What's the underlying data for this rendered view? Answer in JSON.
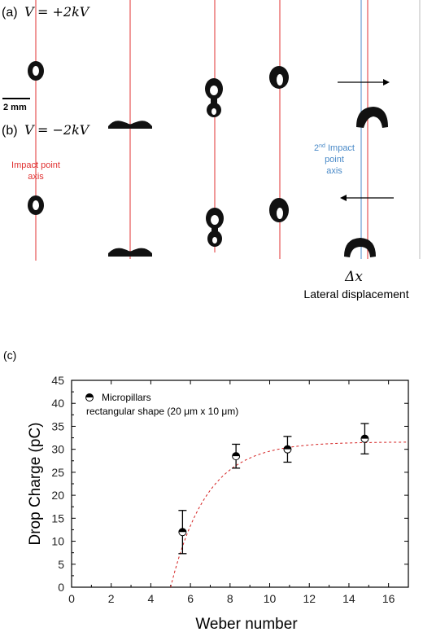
{
  "panel_a": {
    "label": "(a)",
    "voltage_prefix": "V",
    "voltage_value": "= +2kV"
  },
  "panel_b": {
    "label": "(b)",
    "voltage_prefix": "V",
    "voltage_value": "= −2kV"
  },
  "scale_bar_label": "2 mm",
  "impact_axis_label": [
    "Impact point",
    "axis"
  ],
  "second_impact_label": {
    "number": "2",
    "superscript": "nd",
    "line1_rest": " Impact",
    "line2": "point",
    "line3": "axis"
  },
  "delta_x_label": "Δx",
  "lateral_displacement_label": "Lateral displacement",
  "panel_c_label": "(c)",
  "colors": {
    "impact_axis": "#e03030",
    "second_axis": "#4a8ac8",
    "fit_curve": "#d42020",
    "drop": "#111111"
  },
  "chart_data": {
    "type": "scatter",
    "xlabel": "Weber number",
    "ylabel": "Drop Charge (pC)",
    "xlim": [
      0,
      17
    ],
    "ylim": [
      0,
      45
    ],
    "xticks": [
      0,
      2,
      4,
      6,
      8,
      10,
      12,
      14,
      16
    ],
    "yticks": [
      0,
      5,
      10,
      15,
      20,
      25,
      30,
      35,
      40,
      45
    ],
    "legend": {
      "position": "top-left",
      "entry_line1": "Micropillars",
      "entry_line2": "rectangular shape (20 μm x 10 μm)"
    },
    "series": [
      {
        "marker": "half-filled circle",
        "points": [
          {
            "x": 5.6,
            "y": 12.0,
            "err": 4.7
          },
          {
            "x": 8.3,
            "y": 28.5,
            "err": 2.6
          },
          {
            "x": 10.9,
            "y": 30.0,
            "err": 2.8
          },
          {
            "x": 14.8,
            "y": 32.3,
            "err": 3.3
          }
        ]
      }
    ],
    "fit": {
      "style": "dashed",
      "x_start": 5.0,
      "x_end": 17.0,
      "asymptote": 31.6,
      "rate": 0.55
    }
  }
}
